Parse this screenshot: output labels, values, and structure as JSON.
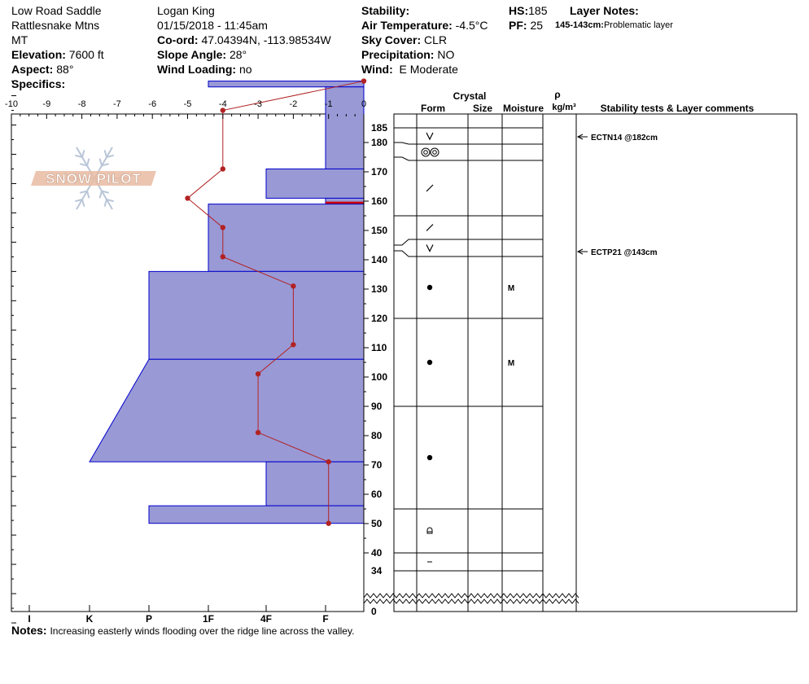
{
  "site": {
    "location": "Low Road Saddle",
    "range": "Rattlesnake Mtns",
    "state": "MT",
    "elevation_label": "Elevation:",
    "elevation": "7600 ft",
    "aspect_label": "Aspect:",
    "aspect": "88°",
    "specifics_label": "Specifics:"
  },
  "observer": {
    "name": "Logan King",
    "datetime": "01/15/2018 - 11:45am",
    "coord_label": "Co-ord:",
    "coord": "47.04394N, -113.98534W",
    "slope_label": "Slope Angle:",
    "slope": "28°",
    "wind_loading_label": "Wind Loading:",
    "wind_loading": "no"
  },
  "conditions": {
    "stability_label": "Stability:",
    "air_temp_label": "Air Temperature:",
    "air_temp": "-4.5°C",
    "sky_label": "Sky Cover:",
    "sky": "CLR",
    "precip_label": "Precipitation:",
    "precip": "NO",
    "wind_label": "Wind:",
    "wind": "E Moderate"
  },
  "summary": {
    "hs_label": "HS:",
    "hs": "185",
    "pf_label": "PF:",
    "pf": "25",
    "layer_notes_label": "Layer Notes:",
    "layer_note_range": "145-143cm:",
    "layer_note_text": "Problematic layer"
  },
  "notes": {
    "label": "Notes:",
    "text": "Increasing easterly winds flooding over the ridge line across the valley."
  },
  "logo_text": "SNOW PILOT",
  "chart_data": {
    "type": "snow-profile",
    "temp_axis": {
      "min": -10,
      "max": 0,
      "ticks": [
        "-10",
        "-9",
        "-8",
        "-7",
        "-6",
        "-5",
        "-4",
        "-3",
        "-2",
        "-1",
        "0"
      ]
    },
    "hardness_axis": [
      "I",
      "K",
      "P",
      "1F",
      "4F",
      "F"
    ],
    "depth_axis": {
      "min": 0,
      "max": 185,
      "ticks": [
        "185",
        "180",
        "170",
        "160",
        "150",
        "140",
        "130",
        "120",
        "110",
        "100",
        "90",
        "80",
        "70",
        "60",
        "50",
        "40",
        "34",
        "0"
      ]
    },
    "temperature_profile": [
      {
        "depth": 185,
        "temp": 0
      },
      {
        "depth": 175,
        "temp": -4
      },
      {
        "depth": 155,
        "temp": -4
      },
      {
        "depth": 145,
        "temp": -5
      },
      {
        "depth": 135,
        "temp": -4
      },
      {
        "depth": 125,
        "temp": -4
      },
      {
        "depth": 115,
        "temp": -2
      },
      {
        "depth": 95,
        "temp": -2
      },
      {
        "depth": 85,
        "temp": -3
      },
      {
        "depth": 65,
        "temp": -3
      },
      {
        "depth": 55,
        "temp": -1
      },
      {
        "depth": 34,
        "temp": -1
      }
    ],
    "hardness_layers": [
      {
        "top": 185,
        "bottom": 183,
        "hardness": "1F"
      },
      {
        "top": 183,
        "bottom": 155,
        "hardness": "F"
      },
      {
        "top": 155,
        "bottom": 145,
        "hardness": "4F"
      },
      {
        "top": 145,
        "bottom": 143,
        "hardness": "F"
      },
      {
        "top": 143,
        "bottom": 120,
        "hardness": "1F"
      },
      {
        "top": 120,
        "bottom": 90,
        "hardness": "P"
      },
      {
        "top": 90,
        "bottom": 55,
        "hardness_top": "P",
        "hardness_bottom": "K"
      },
      {
        "top": 55,
        "bottom": 40,
        "hardness": "4F"
      },
      {
        "top": 40,
        "bottom": 34,
        "hardness": "P"
      }
    ],
    "layer_table": {
      "headers": {
        "crystal": "Crystal",
        "form": "Form",
        "size": "Size",
        "moisture": "Moisture",
        "rho": "ρ",
        "density_unit": "kg/m³",
        "comments": "Stability tests & Layer comments"
      },
      "boundaries": [
        185,
        180,
        175,
        155,
        147,
        141,
        120,
        90,
        55,
        40,
        34
      ],
      "layers": [
        {
          "top": 185,
          "bottom": 180,
          "form": "facet-v",
          "moisture": ""
        },
        {
          "top": 180,
          "bottom": 175,
          "form": "surface-hoar-oo",
          "moisture": ""
        },
        {
          "top": 175,
          "bottom": 155,
          "form": "slash",
          "moisture": ""
        },
        {
          "top": 155,
          "bottom": 147,
          "form": "slash",
          "moisture": ""
        },
        {
          "top": 147,
          "bottom": 141,
          "form": "facet-v",
          "moisture": ""
        },
        {
          "top": 141,
          "bottom": 120,
          "form": "dot",
          "moisture": "M"
        },
        {
          "top": 120,
          "bottom": 90,
          "form": "dot",
          "moisture": "M"
        },
        {
          "top": 90,
          "bottom": 55,
          "form": "dot",
          "moisture": ""
        },
        {
          "top": 55,
          "bottom": 40,
          "form": "melt-crust",
          "moisture": ""
        },
        {
          "top": 40,
          "bottom": 34,
          "form": "dash",
          "moisture": ""
        }
      ]
    },
    "stability_tests": [
      {
        "depth": 182,
        "label": "ECTN14 @182cm"
      },
      {
        "depth": 143,
        "label": "ECTP21 @143cm"
      }
    ],
    "colors": {
      "hardness_fill": "#9999d6",
      "hardness_stroke": "#0000cc",
      "temperature": "#b22222",
      "weak_layer": "#cc0000"
    }
  }
}
